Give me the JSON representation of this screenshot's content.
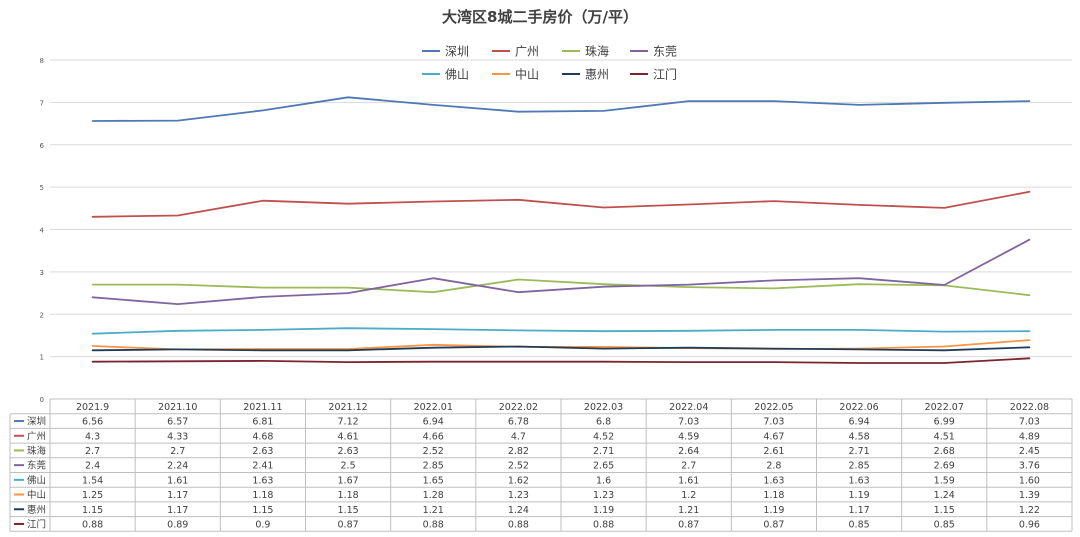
{
  "chart_data": {
    "type": "line",
    "title": "大湾区8城二手房价（万/平）",
    "categories": [
      "2021.9",
      "2021.10",
      "2021.11",
      "2021.12",
      "2022.01",
      "2022.02",
      "2022.03",
      "2022.04",
      "2022.05",
      "2022.06",
      "2022.07",
      "2022.08"
    ],
    "ylim": [
      0,
      8
    ],
    "yticks": [
      "0",
      "1",
      "2",
      "3",
      "4",
      "5",
      "6",
      "7",
      "8"
    ],
    "grid": true,
    "legend_position": "top",
    "series": [
      {
        "name": "深圳",
        "color": "#4e79b5",
        "values": [
          6.56,
          6.57,
          6.81,
          7.12,
          6.94,
          6.78,
          6.8,
          7.03,
          7.03,
          6.94,
          6.99,
          7.03
        ],
        "labels": [
          "6.56",
          "6.57",
          "6.81",
          "7.12",
          "6.94",
          "6.78",
          "6.8",
          "7.03",
          "7.03",
          "6.94",
          "6.99",
          "7.03"
        ]
      },
      {
        "name": "广州",
        "color": "#c0504d",
        "values": [
          4.3,
          4.33,
          4.68,
          4.61,
          4.66,
          4.7,
          4.52,
          4.59,
          4.67,
          4.58,
          4.51,
          4.89
        ],
        "labels": [
          "4.3",
          "4.33",
          "4.68",
          "4.61",
          "4.66",
          "4.7",
          "4.52",
          "4.59",
          "4.67",
          "4.58",
          "4.51",
          "4.89"
        ]
      },
      {
        "name": "珠海",
        "color": "#9bbb59",
        "values": [
          2.7,
          2.7,
          2.63,
          2.63,
          2.52,
          2.82,
          2.71,
          2.64,
          2.61,
          2.71,
          2.68,
          2.45
        ],
        "labels": [
          "2.7",
          "2.7",
          "2.63",
          "2.63",
          "2.52",
          "2.82",
          "2.71",
          "2.64",
          "2.61",
          "2.71",
          "2.68",
          "2.45"
        ]
      },
      {
        "name": "东莞",
        "color": "#8064a2",
        "values": [
          2.4,
          2.24,
          2.41,
          2.5,
          2.85,
          2.52,
          2.65,
          2.7,
          2.8,
          2.85,
          2.69,
          3.76
        ],
        "labels": [
          "2.4",
          "2.24",
          "2.41",
          "2.5",
          "2.85",
          "2.52",
          "2.65",
          "2.7",
          "2.8",
          "2.85",
          "2.69",
          "3.76"
        ]
      },
      {
        "name": "佛山",
        "color": "#4bacc6",
        "values": [
          1.54,
          1.61,
          1.63,
          1.67,
          1.65,
          1.62,
          1.6,
          1.61,
          1.63,
          1.63,
          1.59,
          1.6
        ],
        "labels": [
          "1.54",
          "1.61",
          "1.63",
          "1.67",
          "1.65",
          "1.62",
          "1.6",
          "1.61",
          "1.63",
          "1.63",
          "1.59",
          "1.60"
        ]
      },
      {
        "name": "中山",
        "color": "#f79646",
        "values": [
          1.25,
          1.17,
          1.18,
          1.18,
          1.28,
          1.23,
          1.23,
          1.2,
          1.18,
          1.19,
          1.24,
          1.39
        ],
        "labels": [
          "1.25",
          "1.17",
          "1.18",
          "1.18",
          "1.28",
          "1.23",
          "1.23",
          "1.2",
          "1.18",
          "1.19",
          "1.24",
          "1.39"
        ]
      },
      {
        "name": "惠州",
        "color": "#1f3d5a",
        "values": [
          1.15,
          1.17,
          1.15,
          1.15,
          1.21,
          1.24,
          1.19,
          1.21,
          1.19,
          1.17,
          1.15,
          1.22
        ],
        "labels": [
          "1.15",
          "1.17",
          "1.15",
          "1.15",
          "1.21",
          "1.24",
          "1.19",
          "1.21",
          "1.19",
          "1.17",
          "1.15",
          "1.22"
        ]
      },
      {
        "name": "江门",
        "color": "#7b2430",
        "values": [
          0.88,
          0.89,
          0.9,
          0.87,
          0.88,
          0.88,
          0.88,
          0.87,
          0.87,
          0.85,
          0.85,
          0.96
        ],
        "labels": [
          "0.88",
          "0.89",
          "0.9",
          "0.87",
          "0.88",
          "0.88",
          "0.88",
          "0.87",
          "0.87",
          "0.85",
          "0.85",
          "0.96"
        ]
      }
    ]
  }
}
